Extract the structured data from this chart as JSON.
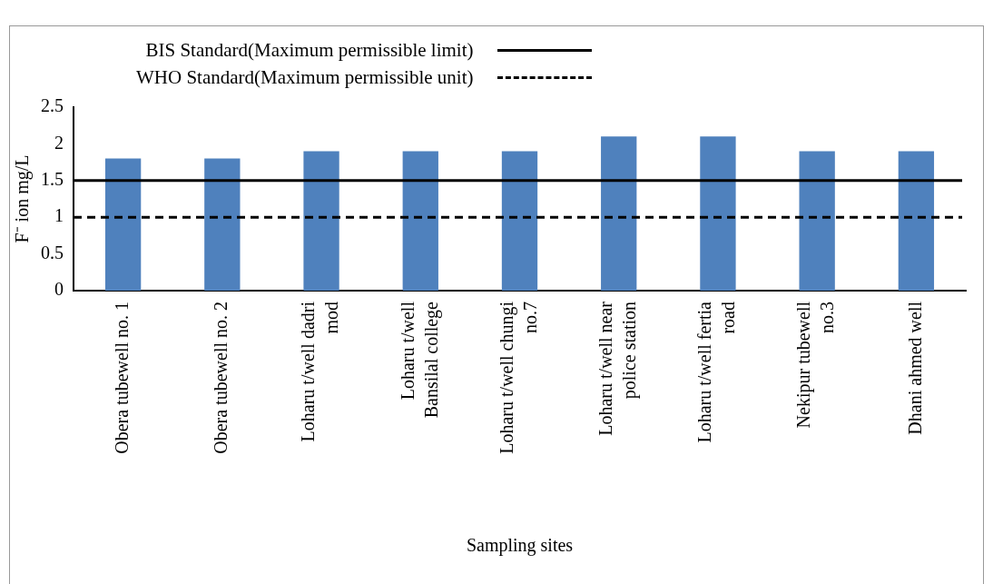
{
  "chart_data": {
    "type": "bar",
    "xlabel": "Sampling sites",
    "ylabel": "F⁻ ion mg/L",
    "categories": [
      "Obera tubewell no. 1",
      "Obera tubewell no. 2",
      "Loharu t/well dadri mod",
      "Loharu t/well Bansilal college",
      "Loharu t/well chungi no.7",
      "Loharu t/well near police station",
      "Loharu t/well fertia road",
      "Nekipur tubewell no.3",
      "Dhani ahmed well"
    ],
    "values": [
      1.8,
      1.8,
      1.9,
      1.9,
      1.9,
      2.1,
      2.1,
      1.9,
      1.9
    ],
    "color": "#4f81bd",
    "ylim": [
      0,
      2.5
    ],
    "yticks": [
      0,
      0.5,
      1,
      1.5,
      2,
      2.5
    ],
    "grid": false,
    "legend": "top",
    "ref_lines": [
      {
        "axis": "y",
        "value": 1.5,
        "label": "BIS Standard(Maximum permissible limit)",
        "color": "#000000",
        "line_style": "solid"
      },
      {
        "axis": "y",
        "value": 1,
        "label": "WHO Standard(Maximum permissible unit)",
        "color": "#000000",
        "line_style": "dashed"
      }
    ]
  }
}
